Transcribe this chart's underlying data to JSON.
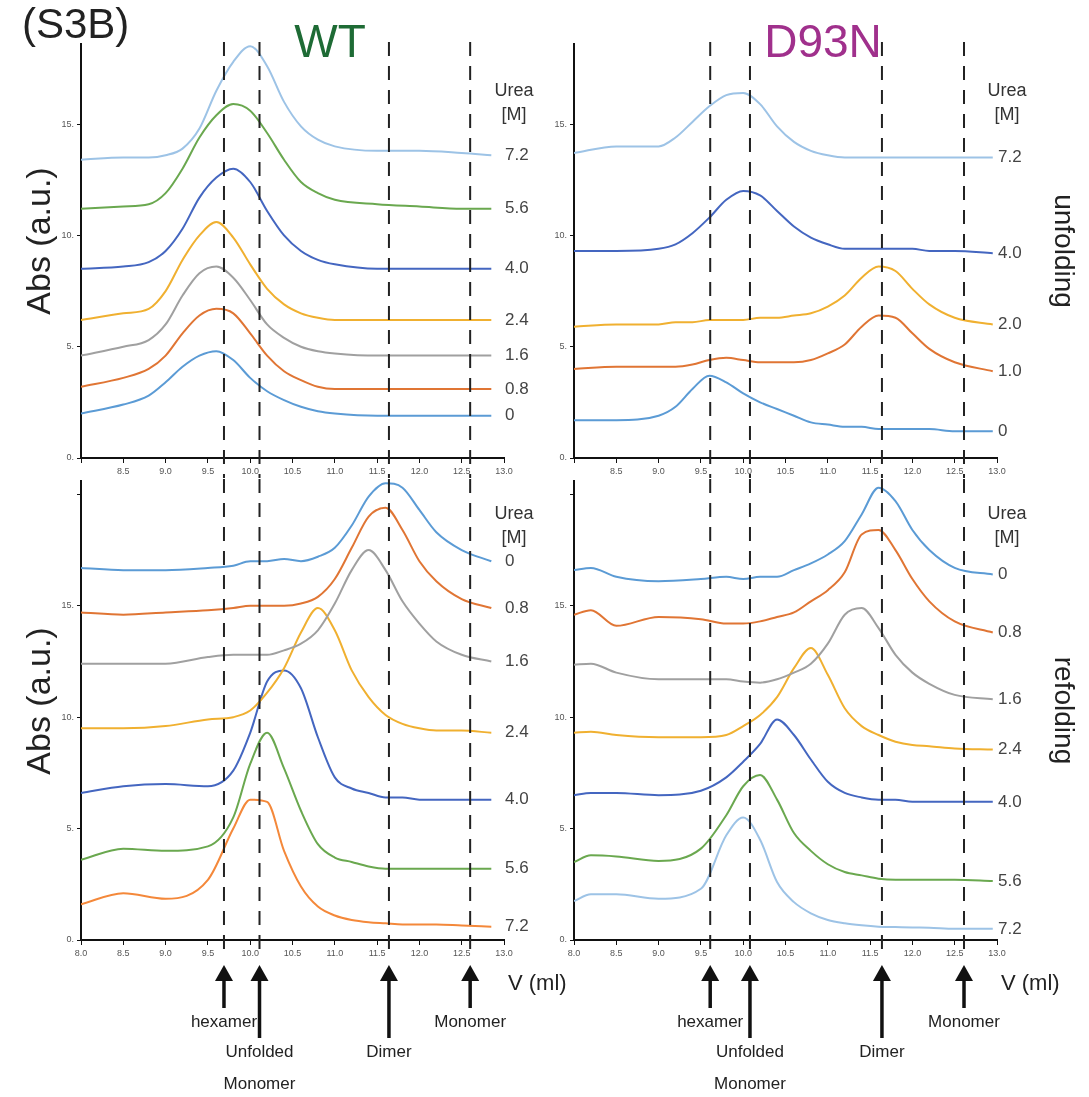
{
  "chart_data": [
    {
      "type": "line",
      "title": "WT",
      "ylabel": "Abs (a.u.)",
      "legend_title": "Urea [M]",
      "annotations": [
        "(S3B)"
      ],
      "marker": "none",
      "x": [
        8.0,
        8.5,
        8.8,
        9.0,
        9.2,
        9.4,
        9.6,
        9.8,
        10.0,
        10.2,
        10.4,
        10.6,
        10.8,
        11.0,
        11.5,
        12.0,
        12.5,
        12.85
      ],
      "xlim": [
        8,
        13
      ],
      "xticks": [
        {
          "value": 8,
          "label": null
        },
        {
          "value": 8.5,
          "label": "8.5"
        },
        {
          "value": 9,
          "label": "9.0"
        },
        {
          "value": 9.5,
          "label": "9.5"
        },
        {
          "value": 10,
          "label": "10.0"
        },
        {
          "value": 10.5,
          "label": "10.5"
        },
        {
          "value": 11,
          "label": "11.0"
        },
        {
          "value": 11.5,
          "label": "11.5"
        },
        {
          "value": 12,
          "label": "12.0"
        },
        {
          "value": 12.5,
          "label": "12.5"
        },
        {
          "value": 13,
          "label": "13.0"
        }
      ],
      "ylim": [
        0,
        18.6
      ],
      "yticks": [
        {
          "value": 0,
          "label": "0."
        },
        {
          "value": 5,
          "label": "5."
        },
        {
          "value": 10,
          "label": "10."
        },
        {
          "value": 15,
          "label": "15."
        }
      ],
      "ref_lines": [
        {
          "axis": "x",
          "value": 9.69,
          "line_style": "dashed"
        },
        {
          "axis": "x",
          "value": 10.11,
          "line_style": "dashed"
        },
        {
          "axis": "x",
          "value": 11.64,
          "line_style": "dashed"
        },
        {
          "axis": "x",
          "value": 12.6,
          "line_style": "dashed"
        }
      ],
      "series": [
        {
          "name": "0",
          "color": "#5b9bd5",
          "values": [
            2.0,
            2.4,
            2.8,
            3.4,
            4.1,
            4.6,
            4.8,
            4.4,
            3.6,
            3.0,
            2.6,
            2.3,
            2.1,
            2.0,
            1.9,
            1.9,
            1.9,
            1.9
          ]
        },
        {
          "name": "0.8",
          "color": "#e07534",
          "values": [
            3.2,
            3.6,
            4.0,
            4.6,
            5.6,
            6.4,
            6.7,
            6.5,
            5.6,
            4.6,
            3.9,
            3.5,
            3.2,
            3.1,
            3.1,
            3.1,
            3.1,
            3.1
          ]
        },
        {
          "name": "1.6",
          "color": "#a0a0a0",
          "values": [
            4.6,
            5.0,
            5.3,
            6.0,
            7.3,
            8.3,
            8.6,
            8.1,
            7.1,
            6.0,
            5.4,
            5.0,
            4.8,
            4.7,
            4.6,
            4.6,
            4.6,
            4.6
          ]
        },
        {
          "name": "2.4",
          "color": "#f0b030",
          "values": [
            6.2,
            6.5,
            6.7,
            7.5,
            8.9,
            10.0,
            10.6,
            9.9,
            8.7,
            7.6,
            6.9,
            6.5,
            6.3,
            6.2,
            6.2,
            6.2,
            6.2,
            6.2
          ]
        },
        {
          "name": "4.0",
          "color": "#4466c0",
          "values": [
            8.5,
            8.6,
            8.8,
            9.3,
            10.3,
            11.7,
            12.6,
            13.0,
            12.4,
            11.1,
            10.0,
            9.3,
            8.9,
            8.7,
            8.5,
            8.5,
            8.5,
            8.5
          ]
        },
        {
          "name": "5.6",
          "color": "#6aa84f",
          "values": [
            11.2,
            11.3,
            11.4,
            11.9,
            13.0,
            14.4,
            15.4,
            15.9,
            15.6,
            14.6,
            13.4,
            12.4,
            11.9,
            11.6,
            11.4,
            11.3,
            11.2,
            11.2
          ]
        },
        {
          "name": "7.2",
          "color": "#9dc3e6",
          "values": [
            13.4,
            13.5,
            13.5,
            13.6,
            13.9,
            14.8,
            16.5,
            17.8,
            18.5,
            17.6,
            16.0,
            14.9,
            14.3,
            14.0,
            13.8,
            13.8,
            13.7,
            13.6
          ]
        }
      ]
    },
    {
      "type": "line",
      "title": "D93N",
      "annotations": [
        "unfolding"
      ],
      "legend_title": "Urea [M]",
      "marker": "none",
      "x": [
        8.0,
        8.5,
        9.0,
        9.2,
        9.4,
        9.6,
        9.8,
        10.0,
        10.2,
        10.4,
        10.6,
        10.8,
        11.0,
        11.2,
        11.4,
        11.6,
        11.8,
        12.0,
        12.2,
        12.5,
        12.95
      ],
      "xlim": [
        8,
        13
      ],
      "xticks": [
        {
          "value": 8,
          "label": null
        },
        {
          "value": 8.5,
          "label": "8.5"
        },
        {
          "value": 9,
          "label": "9.0"
        },
        {
          "value": 9.5,
          "label": "9.5"
        },
        {
          "value": 10,
          "label": "10.0"
        },
        {
          "value": 10.5,
          "label": "10.5"
        },
        {
          "value": 11,
          "label": "11.0"
        },
        {
          "value": 11.5,
          "label": "11.5"
        },
        {
          "value": 12,
          "label": "12.0"
        },
        {
          "value": 12.5,
          "label": "12.5"
        },
        {
          "value": 13,
          "label": "13.0"
        }
      ],
      "ylim": [
        0,
        18.6
      ],
      "yticks": [
        {
          "value": 0,
          "label": "0."
        },
        {
          "value": 5,
          "label": "5."
        },
        {
          "value": 10,
          "label": "10."
        },
        {
          "value": 15,
          "label": "15."
        }
      ],
      "ref_lines": [
        {
          "axis": "x",
          "value": 9.61,
          "line_style": "dashed"
        },
        {
          "axis": "x",
          "value": 10.08,
          "line_style": "dashed"
        },
        {
          "axis": "x",
          "value": 11.64,
          "line_style": "dashed"
        },
        {
          "axis": "x",
          "value": 12.61,
          "line_style": "dashed"
        }
      ],
      "series": [
        {
          "name": "0",
          "color": "#5b9bd5",
          "values": [
            1.7,
            1.7,
            1.9,
            2.3,
            3.1,
            3.7,
            3.4,
            2.9,
            2.5,
            2.2,
            1.9,
            1.6,
            1.5,
            1.4,
            1.4,
            1.3,
            1.3,
            1.3,
            1.3,
            1.2,
            1.2
          ]
        },
        {
          "name": "1.0",
          "color": "#e07534",
          "values": [
            4.0,
            4.1,
            4.1,
            4.1,
            4.2,
            4.4,
            4.5,
            4.4,
            4.3,
            4.3,
            4.3,
            4.4,
            4.7,
            5.1,
            5.9,
            6.4,
            6.3,
            5.6,
            4.9,
            4.3,
            3.9
          ]
        },
        {
          "name": "2.0",
          "color": "#f0b030",
          "values": [
            5.9,
            6.0,
            6.0,
            6.1,
            6.1,
            6.2,
            6.2,
            6.2,
            6.3,
            6.3,
            6.4,
            6.5,
            6.8,
            7.3,
            8.1,
            8.6,
            8.4,
            7.6,
            6.9,
            6.3,
            6.0
          ]
        },
        {
          "name": "4.0",
          "color": "#4466c0",
          "values": [
            9.3,
            9.3,
            9.4,
            9.6,
            10.1,
            10.8,
            11.6,
            12.0,
            11.8,
            11.1,
            10.4,
            9.9,
            9.6,
            9.4,
            9.4,
            9.4,
            9.4,
            9.4,
            9.3,
            9.3,
            9.2
          ]
        },
        {
          "name": "7.2",
          "color": "#9dc3e6",
          "values": [
            13.7,
            14.0,
            14.0,
            14.4,
            15.1,
            15.8,
            16.3,
            16.4,
            15.9,
            14.9,
            14.2,
            13.8,
            13.6,
            13.5,
            13.5,
            13.5,
            13.5,
            13.5,
            13.5,
            13.5,
            13.5
          ]
        }
      ]
    },
    {
      "type": "line",
      "ylabel": "Abs (a.u.)",
      "xlabel": "V (ml)",
      "legend_title": "Urea [M]",
      "marker": "none",
      "annotations": [
        "hexamer",
        "Unfolded\nMonomer",
        "Dimer",
        "Monomer"
      ],
      "x": [
        8.0,
        8.5,
        9.0,
        9.5,
        9.8,
        10.0,
        10.2,
        10.4,
        10.6,
        10.8,
        11.0,
        11.2,
        11.4,
        11.6,
        11.8,
        12.0,
        12.2,
        12.5,
        12.85
      ],
      "xlim": [
        8,
        13
      ],
      "xticks": [
        {
          "value": 8,
          "label": "8.0"
        },
        {
          "value": 8.5,
          "label": "8.5"
        },
        {
          "value": 9,
          "label": "9.0"
        },
        {
          "value": 9.5,
          "label": "9.5"
        },
        {
          "value": 10,
          "label": "10.0"
        },
        {
          "value": 10.5,
          "label": "10.5"
        },
        {
          "value": 11,
          "label": "11.0"
        },
        {
          "value": 11.5,
          "label": "11.5"
        },
        {
          "value": 12,
          "label": "12.0"
        },
        {
          "value": 12.5,
          "label": "12.5"
        },
        {
          "value": 13,
          "label": "13.0"
        }
      ],
      "ylim": [
        0,
        20.6
      ],
      "yticks": [
        {
          "value": 0,
          "label": "0."
        },
        {
          "value": 5,
          "label": "5."
        },
        {
          "value": 10,
          "label": "10."
        },
        {
          "value": 15,
          "label": "15."
        },
        {
          "value": 20,
          "label": null
        }
      ],
      "ref_lines": [
        {
          "axis": "x",
          "value": 9.69,
          "line_style": "dashed"
        },
        {
          "axis": "x",
          "value": 10.11,
          "line_style": "dashed"
        },
        {
          "axis": "x",
          "value": 11.64,
          "line_style": "dashed"
        },
        {
          "axis": "x",
          "value": 12.6,
          "line_style": "dashed"
        }
      ],
      "series": [
        {
          "name": "0",
          "color": "#5b9bd5",
          "values": [
            16.7,
            16.6,
            16.6,
            16.7,
            16.8,
            17.0,
            17.0,
            17.1,
            17.0,
            17.2,
            17.6,
            18.6,
            19.9,
            20.5,
            20.3,
            19.3,
            18.3,
            17.5,
            17.0
          ]
        },
        {
          "name": "0.8",
          "color": "#e07534",
          "values": [
            14.7,
            14.6,
            14.7,
            14.8,
            14.9,
            15.0,
            15.0,
            15.0,
            15.1,
            15.4,
            16.2,
            17.6,
            19.0,
            19.4,
            18.4,
            17.0,
            16.1,
            15.3,
            14.9
          ]
        },
        {
          "name": "1.6",
          "color": "#a0a0a0",
          "values": [
            12.4,
            12.4,
            12.4,
            12.7,
            12.8,
            12.8,
            12.8,
            13.0,
            13.3,
            13.9,
            15.1,
            16.6,
            17.5,
            16.6,
            15.2,
            14.2,
            13.4,
            12.8,
            12.5
          ]
        },
        {
          "name": "2.4",
          "color": "#f0b030",
          "values": [
            9.5,
            9.5,
            9.6,
            9.9,
            10.0,
            10.3,
            11.1,
            12.2,
            13.8,
            14.9,
            13.9,
            12.1,
            10.9,
            10.1,
            9.7,
            9.5,
            9.4,
            9.4,
            9.3
          ]
        },
        {
          "name": "4.0",
          "color": "#4466c0",
          "values": [
            6.6,
            6.9,
            7.0,
            6.9,
            7.6,
            9.3,
            11.6,
            12.1,
            11.3,
            9.1,
            7.3,
            6.8,
            6.6,
            6.4,
            6.4,
            6.3,
            6.3,
            6.3,
            6.3
          ]
        },
        {
          "name": "5.6",
          "color": "#6aa84f",
          "values": [
            3.6,
            4.1,
            4.0,
            4.2,
            5.5,
            7.9,
            9.3,
            7.7,
            5.8,
            4.3,
            3.7,
            3.5,
            3.3,
            3.2,
            3.2,
            3.2,
            3.2,
            3.2,
            3.2
          ]
        },
        {
          "name": "7.2",
          "color": "#f4883a",
          "values": [
            1.6,
            2.1,
            1.85,
            2.7,
            5.0,
            6.3,
            6.2,
            4.0,
            2.4,
            1.5,
            1.1,
            0.9,
            0.8,
            0.75,
            0.7,
            0.7,
            0.7,
            0.65,
            0.6
          ]
        }
      ]
    },
    {
      "type": "line",
      "xlabel": "V (ml)",
      "legend_title": "Urea [M]",
      "annotations": [
        "hexamer",
        "Unfolded\nMonomer",
        "Dimer",
        "Monomer",
        "refolding"
      ],
      "marker": "none",
      "x": [
        8.0,
        8.2,
        8.5,
        9.0,
        9.5,
        9.8,
        10.0,
        10.2,
        10.4,
        10.6,
        10.8,
        11.0,
        11.2,
        11.4,
        11.6,
        11.8,
        12.0,
        12.2,
        12.5,
        12.95
      ],
      "xlim": [
        8,
        13
      ],
      "xticks": [
        {
          "value": 8,
          "label": "8.0"
        },
        {
          "value": 8.5,
          "label": "8.5"
        },
        {
          "value": 9,
          "label": "9.0"
        },
        {
          "value": 9.5,
          "label": "9.5"
        },
        {
          "value": 10,
          "label": "10.0"
        },
        {
          "value": 10.5,
          "label": "10.5"
        },
        {
          "value": 11,
          "label": "11.0"
        },
        {
          "value": 11.5,
          "label": "11.5"
        },
        {
          "value": 12,
          "label": "12.0"
        },
        {
          "value": 12.5,
          "label": "12.5"
        },
        {
          "value": 13,
          "label": "13.0"
        }
      ],
      "ylim": [
        0,
        20.6
      ],
      "yticks": [
        {
          "value": 0,
          "label": "0."
        },
        {
          "value": 5,
          "label": "5."
        },
        {
          "value": 10,
          "label": "10."
        },
        {
          "value": 15,
          "label": "15."
        },
        {
          "value": 20,
          "label": null
        }
      ],
      "ref_lines": [
        {
          "axis": "x",
          "value": 9.61,
          "line_style": "dashed"
        },
        {
          "axis": "x",
          "value": 10.08,
          "line_style": "dashed"
        },
        {
          "axis": "x",
          "value": 11.64,
          "line_style": "dashed"
        },
        {
          "axis": "x",
          "value": 12.61,
          "line_style": "dashed"
        }
      ],
      "series": [
        {
          "name": "0",
          "color": "#5b9bd5",
          "values": [
            16.6,
            16.7,
            16.3,
            16.1,
            16.2,
            16.3,
            16.2,
            16.3,
            16.3,
            16.6,
            16.9,
            17.3,
            17.9,
            19.1,
            20.3,
            19.7,
            18.4,
            17.5,
            16.7,
            16.4
          ]
        },
        {
          "name": "0.8",
          "color": "#e07534",
          "values": [
            14.6,
            14.8,
            14.1,
            14.5,
            14.4,
            14.2,
            14.2,
            14.3,
            14.5,
            14.7,
            15.2,
            15.7,
            16.5,
            18.2,
            18.4,
            17.5,
            16.2,
            15.2,
            14.3,
            13.8
          ]
        },
        {
          "name": "1.6",
          "color": "#a0a0a0",
          "values": [
            12.35,
            12.4,
            12.0,
            11.7,
            11.7,
            11.7,
            11.6,
            11.55,
            11.7,
            12.0,
            12.4,
            13.3,
            14.6,
            14.9,
            14.0,
            12.8,
            12.0,
            11.5,
            11.0,
            10.8
          ]
        },
        {
          "name": "2.4",
          "color": "#f0b030",
          "values": [
            9.3,
            9.35,
            9.2,
            9.1,
            9.1,
            9.2,
            9.6,
            10.1,
            10.9,
            12.2,
            13.1,
            11.9,
            10.4,
            9.6,
            9.2,
            8.9,
            8.75,
            8.7,
            8.6,
            8.55
          ]
        },
        {
          "name": "4.0",
          "color": "#4466c0",
          "values": [
            6.5,
            6.6,
            6.6,
            6.5,
            6.7,
            7.3,
            8.0,
            8.8,
            9.9,
            9.2,
            8.1,
            7.1,
            6.6,
            6.4,
            6.3,
            6.3,
            6.2,
            6.2,
            6.2,
            6.2
          ]
        },
        {
          "name": "5.6",
          "color": "#6aa84f",
          "values": [
            3.5,
            3.8,
            3.75,
            3.55,
            4.1,
            5.6,
            6.9,
            7.4,
            6.3,
            4.8,
            4.0,
            3.4,
            3.05,
            2.9,
            2.75,
            2.7,
            2.7,
            2.7,
            2.7,
            2.65
          ]
        },
        {
          "name": "7.2",
          "color": "#9dc3e6",
          "values": [
            1.75,
            2.05,
            2.05,
            1.85,
            2.3,
            4.7,
            5.5,
            4.5,
            2.6,
            1.7,
            1.2,
            0.9,
            0.75,
            0.66,
            0.6,
            0.58,
            0.56,
            0.55,
            0.5,
            0.5
          ]
        }
      ]
    }
  ]
}
